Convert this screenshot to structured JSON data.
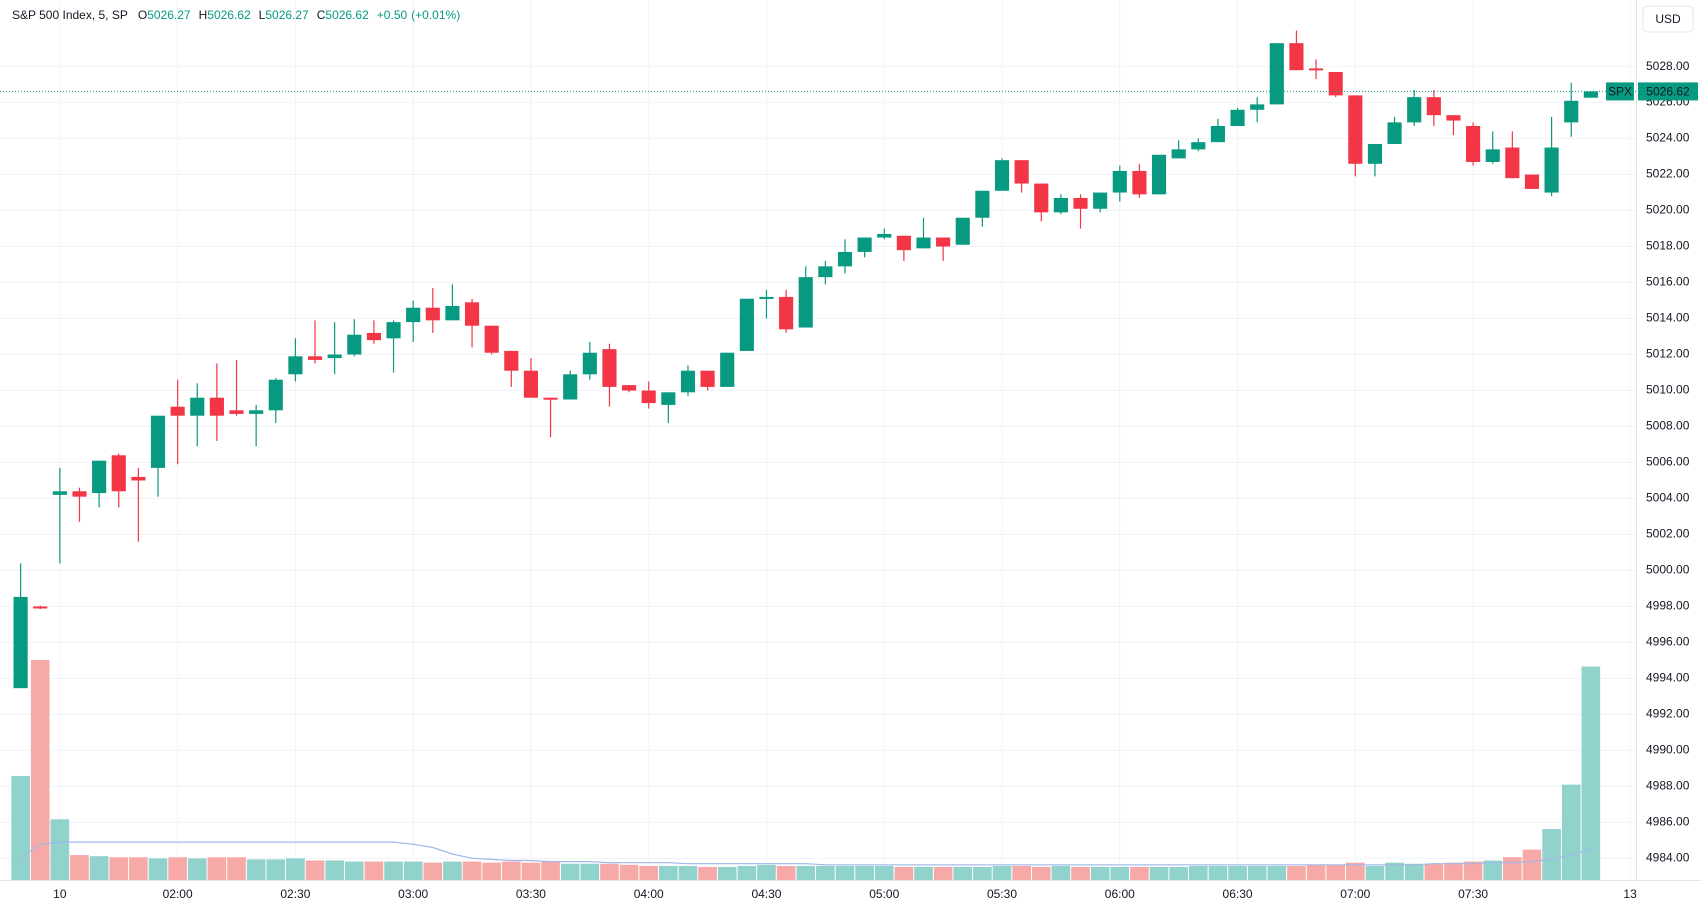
{
  "chart_data": {
    "type": "candlestick",
    "title": "S&P 500 Index, 5, SP",
    "ohlc_letters": [
      "O",
      "H",
      "L",
      "C"
    ],
    "change": {
      "value": 0.5,
      "label": "+0.50"
    },
    "change_pct": {
      "value": 0.01,
      "label": "(+0.01%)"
    },
    "currency": "USD",
    "last_name": "SPX",
    "last_value": 5026.62,
    "up_color": "#089981",
    "down_color": "#f23645",
    "up_volume_color": "#92d2cc",
    "down_volume_color": "#f7a9a7",
    "volume_ma_color": "#a0b9e8",
    "grid": true,
    "open": [
      4993.46,
      4998.0,
      5004.2,
      5004.4,
      5004.3,
      5006.4,
      5005.2,
      5005.7,
      5009.1,
      5008.6,
      5009.6,
      5008.9,
      5008.7,
      5008.9,
      5010.9,
      5011.9,
      5011.8,
      5012.0,
      5013.2,
      5012.9,
      5013.8,
      5014.6,
      5013.9,
      5014.9,
      5013.6,
      5012.2,
      5011.1,
      5009.6,
      5009.5,
      5010.9,
      5012.3,
      5010.3,
      5010.0,
      5009.2,
      5009.9,
      5011.1,
      5010.2,
      5012.2,
      5015.1,
      5015.2,
      5013.5,
      5016.3,
      5016.9,
      5017.7,
      5018.5,
      5018.6,
      5017.9,
      5018.5,
      5018.1,
      5019.6,
      5021.1,
      5022.8,
      5021.5,
      5019.9,
      5020.7,
      5020.1,
      5021.0,
      5022.2,
      5020.9,
      5022.9,
      5023.4,
      5023.8,
      5024.7,
      5025.6,
      5025.9,
      5029.3,
      5027.9,
      5027.7,
      5026.4,
      5022.6,
      5023.7,
      5024.9,
      5026.3,
      5025.3,
      5024.7,
      5022.7,
      5023.5,
      5022.0,
      5021.0,
      5024.9,
      5026.27
    ],
    "high": [
      5000.4,
      4998.05,
      5005.7,
      5004.6,
      5006.1,
      5006.5,
      5005.7,
      5008.6,
      5010.6,
      5010.4,
      5011.5,
      5011.7,
      5009.2,
      5010.7,
      5012.9,
      5013.9,
      5013.8,
      5013.96,
      5013.9,
      5013.9,
      5015.0,
      5015.7,
      5015.9,
      5015.1,
      5013.6,
      5012.2,
      5011.8,
      5009.6,
      5011.1,
      5012.7,
      5012.6,
      5010.3,
      5010.5,
      5009.9,
      5011.4,
      5011.1,
      5012.1,
      5015.1,
      5015.6,
      5015.6,
      5016.9,
      5017.2,
      5018.4,
      5018.5,
      5019.0,
      5018.6,
      5019.6,
      5018.5,
      5019.6,
      5021.1,
      5022.9,
      5022.8,
      5021.5,
      5020.9,
      5020.9,
      5021.0,
      5022.5,
      5022.6,
      5023.1,
      5023.9,
      5024.0,
      5025.1,
      5025.7,
      5026.3,
      5029.3,
      5030.0,
      5028.4,
      5027.7,
      5026.4,
      5023.7,
      5025.2,
      5026.7,
      5026.7,
      5025.3,
      5024.9,
      5024.4,
      5024.4,
      5022.0,
      5025.2,
      5027.1,
      5026.62
    ],
    "low": [
      4993.46,
      4997.85,
      5000.4,
      5002.7,
      5003.5,
      5003.5,
      5001.6,
      5004.1,
      5005.9,
      5006.9,
      5007.2,
      5008.6,
      5006.9,
      5008.2,
      5010.5,
      5011.5,
      5010.9,
      5011.9,
      5012.6,
      5011.0,
      5012.7,
      5013.2,
      5013.9,
      5012.4,
      5012.0,
      5010.2,
      5009.6,
      5007.4,
      5009.5,
      5010.6,
      5009.1,
      5009.9,
      5009.0,
      5008.2,
      5009.7,
      5010.0,
      5010.2,
      5012.2,
      5014.0,
      5013.2,
      5013.5,
      5015.9,
      5016.5,
      5017.4,
      5018.4,
      5017.2,
      5017.9,
      5017.2,
      5018.1,
      5019.1,
      5021.1,
      5021.0,
      5019.4,
      5019.8,
      5019.0,
      5019.9,
      5020.5,
      5020.7,
      5020.9,
      5022.9,
      5023.3,
      5023.8,
      5024.7,
      5024.9,
      5025.9,
      5027.8,
      5027.3,
      5026.3,
      5021.9,
      5021.9,
      5023.7,
      5024.7,
      5024.7,
      5024.2,
      5022.5,
      5022.6,
      5021.8,
      5021.2,
      5020.8,
      5024.1,
      5026.27
    ],
    "close": [
      4998.53,
      4997.9,
      5004.4,
      5004.1,
      5006.1,
      5004.4,
      5005.0,
      5008.6,
      5008.6,
      5009.6,
      5008.6,
      5008.7,
      5008.9,
      5010.6,
      5011.9,
      5011.7,
      5012.0,
      5013.1,
      5012.8,
      5013.8,
      5014.6,
      5013.9,
      5014.7,
      5013.6,
      5012.1,
      5011.1,
      5009.6,
      5009.5,
      5010.9,
      5012.1,
      5010.2,
      5010.0,
      5009.3,
      5009.9,
      5011.1,
      5010.2,
      5012.1,
      5015.1,
      5015.2,
      5013.4,
      5016.3,
      5016.9,
      5017.7,
      5018.5,
      5018.7,
      5017.8,
      5018.5,
      5018.0,
      5019.6,
      5021.1,
      5022.8,
      5021.5,
      5019.9,
      5020.7,
      5020.1,
      5021.0,
      5022.2,
      5020.9,
      5023.1,
      5023.4,
      5023.8,
      5024.7,
      5025.6,
      5025.9,
      5029.3,
      5027.8,
      5027.8,
      5026.4,
      5022.6,
      5023.7,
      5024.9,
      5026.3,
      5025.3,
      5025.0,
      5022.7,
      5023.4,
      5021.8,
      5021.2,
      5023.5,
      5026.1,
      5026.62
    ],
    "volume": [
      96,
      203,
      56,
      23,
      22,
      21,
      21,
      20,
      21,
      20,
      21,
      21,
      19,
      19,
      20,
      18,
      18,
      17,
      17,
      17,
      17,
      16,
      17,
      17,
      16,
      17,
      16,
      17,
      15,
      15,
      15,
      14,
      13,
      13,
      13,
      12,
      12,
      13,
      14,
      13,
      13,
      13,
      13,
      13,
      13,
      12,
      12,
      12,
      12,
      12,
      13,
      13,
      12,
      13,
      12,
      12,
      12,
      12,
      12,
      12,
      13,
      13,
      13,
      13,
      13,
      13,
      14,
      14,
      16,
      13,
      16,
      15,
      15,
      16,
      17,
      18,
      21,
      28,
      47,
      88,
      197
    ],
    "volume_ma": [
      20,
      33,
      35,
      35,
      35,
      35,
      35,
      35,
      35,
      35,
      35,
      35,
      35,
      35,
      35,
      35,
      35,
      35,
      35,
      35,
      33,
      30,
      24,
      20,
      19,
      18,
      18,
      17,
      17,
      17,
      16,
      16,
      16,
      16,
      15,
      15,
      15,
      15,
      15,
      15,
      15,
      14,
      14,
      14,
      14,
      14,
      14,
      14,
      14,
      14,
      14,
      14,
      14,
      14,
      14,
      14,
      14,
      14,
      14,
      14,
      14,
      14,
      14,
      14,
      14,
      14,
      14,
      14,
      14,
      14,
      14,
      14,
      15,
      15,
      15,
      16,
      16,
      17,
      19,
      23,
      29
    ],
    "xlim": [
      -1.05,
      82.3
    ],
    "xticks": [
      {
        "value": 2,
        "label": "10"
      },
      {
        "value": 8,
        "label": "02:00"
      },
      {
        "value": 14,
        "label": "02:30"
      },
      {
        "value": 20,
        "label": "03:00"
      },
      {
        "value": 26,
        "label": "03:30"
      },
      {
        "value": 32,
        "label": "04:00"
      },
      {
        "value": 38,
        "label": "04:30"
      },
      {
        "value": 44,
        "label": "05:00"
      },
      {
        "value": 50,
        "label": "05:30"
      },
      {
        "value": 56,
        "label": "06:00"
      },
      {
        "value": 62,
        "label": "06:30"
      },
      {
        "value": 68,
        "label": "07:00"
      },
      {
        "value": 74,
        "label": "07:30"
      },
      {
        "value": 82,
        "label": "13"
      }
    ],
    "ylim": [
      4982.8,
      5031.7
    ],
    "yticks": [
      {
        "value": 4984,
        "label": "4984.00"
      },
      {
        "value": 4986,
        "label": "4986.00"
      },
      {
        "value": 4988,
        "label": "4988.00"
      },
      {
        "value": 4990,
        "label": "4990.00"
      },
      {
        "value": 4992,
        "label": "4992.00"
      },
      {
        "value": 4994,
        "label": "4994.00"
      },
      {
        "value": 4996,
        "label": "4996.00"
      },
      {
        "value": 4998,
        "label": "4998.00"
      },
      {
        "value": 5000,
        "label": "5000.00"
      },
      {
        "value": 5002,
        "label": "5002.00"
      },
      {
        "value": 5004,
        "label": "5004.00"
      },
      {
        "value": 5006,
        "label": "5006.00"
      },
      {
        "value": 5008,
        "label": "5008.00"
      },
      {
        "value": 5010,
        "label": "5010.00"
      },
      {
        "value": 5012,
        "label": "5012.00"
      },
      {
        "value": 5014,
        "label": "5014.00"
      },
      {
        "value": 5016,
        "label": "5016.00"
      },
      {
        "value": 5018,
        "label": "5018.00"
      },
      {
        "value": 5020,
        "label": "5020.00"
      },
      {
        "value": 5022,
        "label": "5022.00"
      },
      {
        "value": 5024,
        "label": "5024.00"
      },
      {
        "value": 5026,
        "label": "5026.00"
      },
      {
        "value": 5028,
        "label": "5028.00"
      }
    ]
  }
}
